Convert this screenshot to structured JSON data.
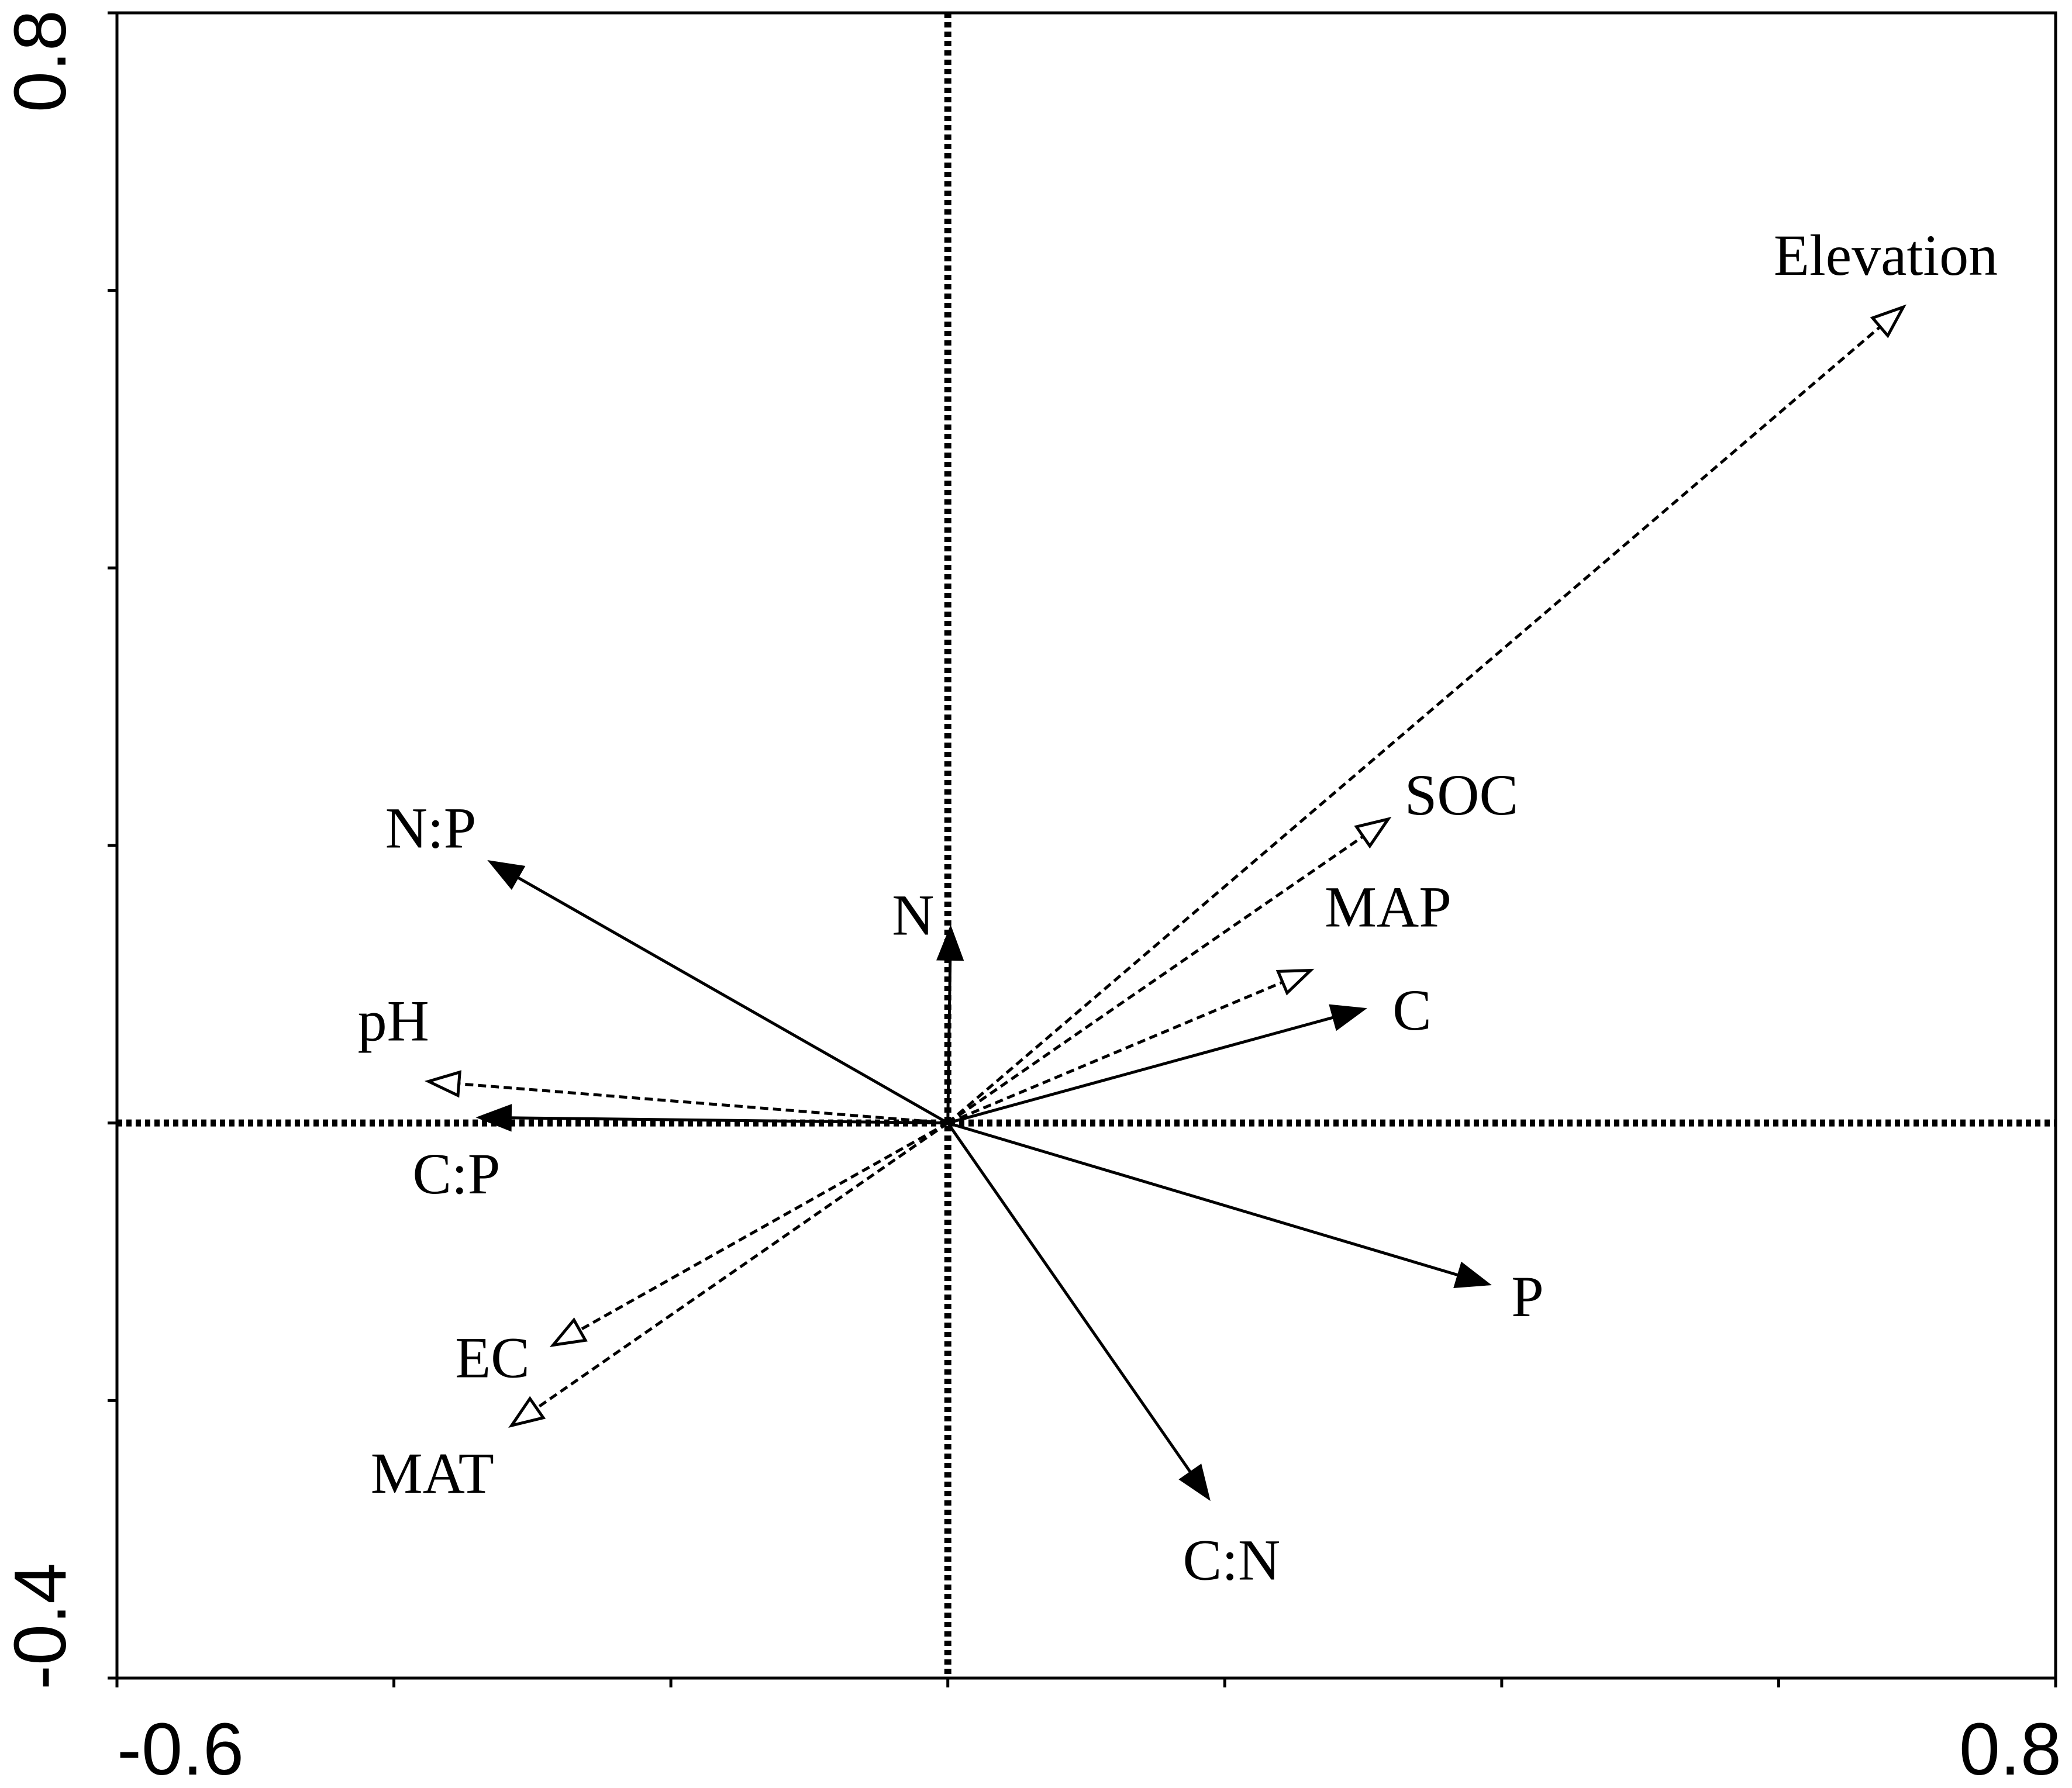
{
  "chart_data": {
    "type": "biplot",
    "title": "",
    "xlabel": "",
    "ylabel": "",
    "xlim": [
      -0.6,
      0.8
    ],
    "ylim": [
      -0.4,
      0.8
    ],
    "x_tick_labels": [
      {
        "value": -0.6,
        "label": "-0.6"
      },
      {
        "value": 0.8,
        "label": "0.8"
      }
    ],
    "y_tick_labels": [
      {
        "value": -0.4,
        "label": "-0.4"
      },
      {
        "value": 0.8,
        "label": "0.8"
      }
    ],
    "x_ticks": [
      -0.6,
      -0.4,
      -0.2,
      0.0,
      0.2,
      0.4,
      0.6,
      0.8
    ],
    "y_ticks": [
      -0.4,
      -0.2,
      0.0,
      0.2,
      0.4,
      0.6,
      0.8
    ],
    "zero_lines": {
      "x": 0,
      "y": 0,
      "style": "dotted"
    },
    "vectors": [
      {
        "name": "Elevation",
        "x": 0.69,
        "y": 0.588,
        "line": "dashed",
        "head": "open"
      },
      {
        "name": "SOC",
        "x": 0.318,
        "y": 0.219,
        "line": "dashed",
        "head": "open"
      },
      {
        "name": "MAP",
        "x": 0.262,
        "y": 0.11,
        "line": "dashed",
        "head": "open"
      },
      {
        "name": "pH",
        "x": -0.375,
        "y": 0.03,
        "line": "dashed",
        "head": "open"
      },
      {
        "name": "EC",
        "x": -0.285,
        "y": -0.16,
        "line": "dashed",
        "head": "open"
      },
      {
        "name": "MAT",
        "x": -0.315,
        "y": -0.218,
        "line": "dashed",
        "head": "open"
      },
      {
        "name": "N:P",
        "x": -0.33,
        "y": 0.188,
        "line": "solid",
        "head": "filled"
      },
      {
        "name": "N",
        "x": 0.002,
        "y": 0.14,
        "line": "solid",
        "head": "filled"
      },
      {
        "name": "C",
        "x": 0.3,
        "y": 0.082,
        "line": "solid",
        "head": "filled"
      },
      {
        "name": "C:P",
        "x": -0.338,
        "y": 0.004,
        "line": "solid",
        "head": "filled"
      },
      {
        "name": "P",
        "x": 0.39,
        "y": -0.116,
        "line": "solid",
        "head": "filled"
      },
      {
        "name": "C:N",
        "x": 0.188,
        "y": -0.27,
        "line": "solid",
        "head": "filled"
      }
    ]
  }
}
